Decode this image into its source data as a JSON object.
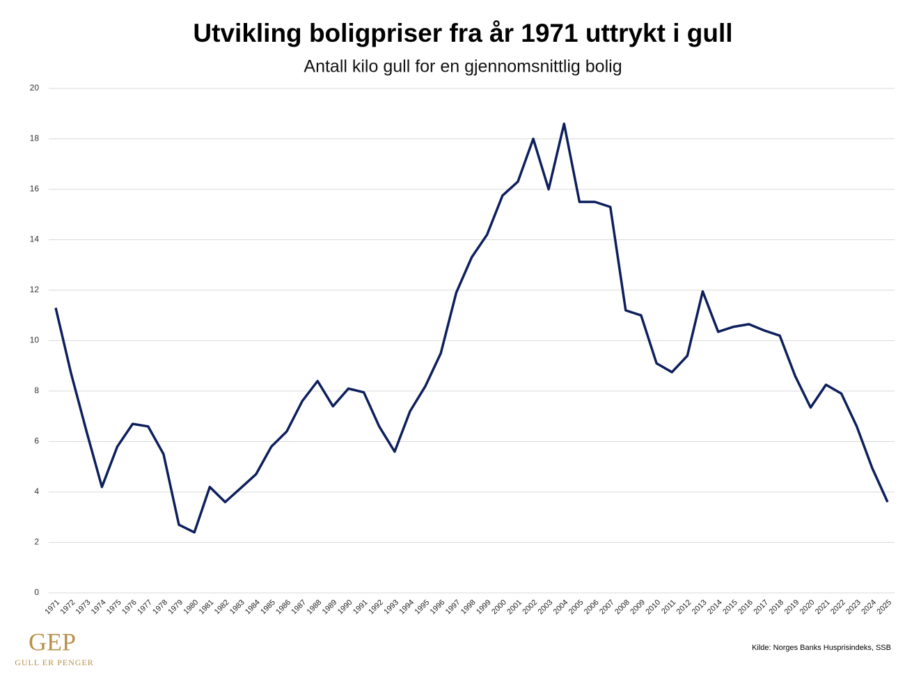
{
  "chart_data": {
    "type": "line",
    "title": "Utvikling boligpriser fra år 1971 uttrykt i gull",
    "subtitle": "Antall kilo gull for en gjennomsnittlig bolig",
    "source": "Kilde: Norges Banks Husprisindeks, SSB",
    "categories": [
      "1971",
      "1972",
      "1973",
      "1974",
      "1975",
      "1976",
      "1977",
      "1978",
      "1979",
      "1980",
      "1981",
      "1982",
      "1983",
      "1984",
      "1985",
      "1986",
      "1987",
      "1988",
      "1989",
      "1990",
      "1991",
      "1992",
      "1993",
      "1994",
      "1995",
      "1996",
      "1997",
      "1998",
      "1999",
      "2000",
      "2001",
      "2002",
      "2003",
      "2004",
      "2005",
      "2006",
      "2007",
      "2008",
      "2009",
      "2010",
      "2011",
      "2012",
      "2013",
      "2014",
      "2015",
      "2016",
      "2017",
      "2018",
      "2019",
      "2020",
      "2021",
      "2022",
      "2023",
      "2024",
      "2025"
    ],
    "values": [
      11.3,
      8.7,
      6.4,
      4.2,
      5.8,
      6.7,
      6.6,
      5.5,
      2.7,
      2.4,
      4.2,
      3.6,
      4.15,
      4.7,
      5.8,
      6.4,
      7.6,
      8.4,
      7.4,
      8.1,
      7.95,
      6.6,
      5.6,
      7.2,
      8.2,
      9.5,
      11.9,
      13.3,
      14.2,
      15.75,
      16.3,
      18.0,
      16.0,
      18.6,
      15.5,
      15.5,
      15.3,
      11.2,
      11.0,
      9.1,
      8.75,
      9.4,
      11.95,
      10.35,
      10.55,
      10.65,
      10.4,
      10.2,
      8.6,
      7.35,
      8.25,
      7.9,
      6.6,
      4.95,
      3.6
    ],
    "color": "#0d1f5c",
    "ylim": [
      0,
      20
    ],
    "yticks": [
      0,
      2,
      4,
      6,
      8,
      10,
      12,
      14,
      16,
      18,
      20
    ],
    "grid": true
  },
  "logo": {
    "mark": "GEP",
    "tagline": "GULL ER PENGER"
  }
}
